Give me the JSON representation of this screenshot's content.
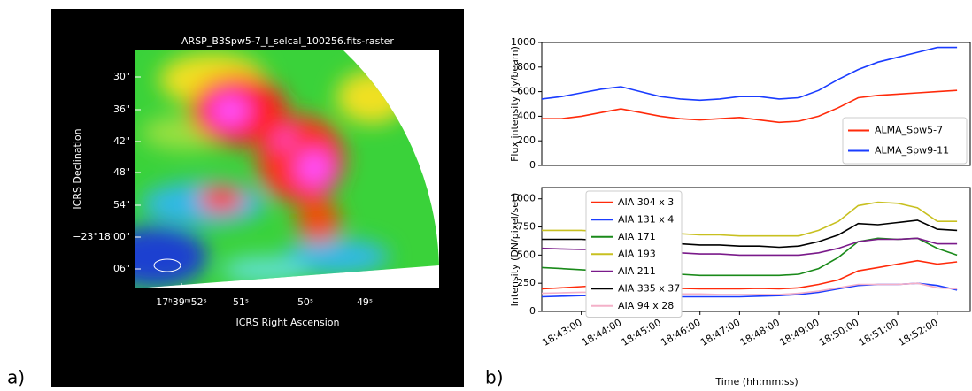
{
  "chart_data": [
    {
      "type": "image",
      "label": "a)",
      "title": "ARSP_B3Spw5-7_I_selcal_100256.fits-raster",
      "xlabel": "ICRS Right Ascension",
      "ylabel": "ICRS Declination",
      "x_tick_labels": [
        "17ʰ39ᵐ52ˢ",
        "51ˢ",
        "50ˢ",
        "49ˢ"
      ],
      "y_tick_labels": [
        "30\"",
        "36\"",
        "42\"",
        "48\"",
        "54\"",
        "−23°18'00\"",
        "06\""
      ]
    },
    {
      "type": "line",
      "label": "b)",
      "ylabel": "Flux intensity (Jy/beam)",
      "x": [
        "18:42:00",
        "18:42:30",
        "18:43:00",
        "18:43:30",
        "18:44:00",
        "18:44:30",
        "18:45:00",
        "18:45:30",
        "18:46:00",
        "18:46:30",
        "18:47:00",
        "18:47:30",
        "18:48:00",
        "18:48:30",
        "18:49:00",
        "18:49:30",
        "18:50:00",
        "18:50:30",
        "18:51:00",
        "18:51:30",
        "18:52:00",
        "18:52:30"
      ],
      "xlim": [
        "18:42:00",
        "18:52:50"
      ],
      "ylim": [
        0,
        1000
      ],
      "yticks": [
        0,
        200,
        400,
        600,
        800,
        1000
      ],
      "legend": "lower right",
      "series": [
        {
          "name": "ALMA_Spw5-7",
          "color": "#ff2a0a",
          "values": [
            380,
            380,
            400,
            430,
            460,
            430,
            400,
            380,
            370,
            380,
            390,
            370,
            350,
            360,
            400,
            470,
            550,
            570,
            580,
            590,
            600,
            610
          ]
        },
        {
          "name": "ALMA_Spw9-11",
          "color": "#1a3cff",
          "values": [
            540,
            560,
            590,
            620,
            640,
            600,
            560,
            540,
            530,
            540,
            560,
            560,
            540,
            550,
            610,
            700,
            780,
            840,
            880,
            920,
            960,
            960
          ]
        }
      ]
    },
    {
      "type": "line",
      "xlabel": "Time (hh:mm:ss)",
      "ylabel": "Intensity (DN/pixel/sec)",
      "x": [
        "18:42:00",
        "18:42:30",
        "18:43:00",
        "18:43:30",
        "18:44:00",
        "18:44:30",
        "18:45:00",
        "18:45:30",
        "18:46:00",
        "18:46:30",
        "18:47:00",
        "18:47:30",
        "18:48:00",
        "18:48:30",
        "18:49:00",
        "18:49:30",
        "18:50:00",
        "18:50:30",
        "18:51:00",
        "18:51:30",
        "18:52:00",
        "18:52:30"
      ],
      "xlim": [
        "18:42:00",
        "18:52:50"
      ],
      "xticks": [
        "18:43:00",
        "18:44:00",
        "18:45:00",
        "18:46:00",
        "18:47:00",
        "18:48:00",
        "18:49:00",
        "18:50:00",
        "18:51:00",
        "18:52:00"
      ],
      "ylim": [
        0,
        1100
      ],
      "yticks": [
        0,
        250,
        500,
        750,
        1000
      ],
      "legend": "upper left",
      "series": [
        {
          "name": "AIA 304 x 3",
          "color": "#ff2a0a",
          "values": [
            200,
            210,
            220,
            230,
            220,
            210,
            210,
            205,
            200,
            200,
            200,
            205,
            200,
            210,
            240,
            280,
            360,
            390,
            420,
            450,
            420,
            440
          ]
        },
        {
          "name": "AIA 131 x 4",
          "color": "#1a3cff",
          "values": [
            130,
            135,
            140,
            140,
            140,
            135,
            130,
            130,
            130,
            130,
            130,
            135,
            140,
            150,
            170,
            200,
            230,
            240,
            240,
            250,
            230,
            190
          ]
        },
        {
          "name": "AIA 171",
          "color": "#1a8a1a",
          "values": [
            390,
            380,
            370,
            360,
            360,
            350,
            340,
            330,
            320,
            320,
            320,
            320,
            320,
            330,
            380,
            480,
            620,
            650,
            640,
            650,
            560,
            500
          ]
        },
        {
          "name": "AIA 193",
          "color": "#c8c020",
          "values": [
            720,
            720,
            720,
            710,
            700,
            700,
            690,
            690,
            680,
            680,
            670,
            670,
            670,
            670,
            720,
            800,
            940,
            970,
            960,
            920,
            800,
            800
          ]
        },
        {
          "name": "AIA 211",
          "color": "#7a1a8a",
          "values": [
            560,
            555,
            550,
            550,
            545,
            540,
            530,
            520,
            510,
            510,
            500,
            500,
            500,
            500,
            520,
            560,
            620,
            640,
            640,
            650,
            600,
            600
          ]
        },
        {
          "name": "AIA 335 x 37",
          "color": "#000000",
          "values": [
            640,
            640,
            640,
            630,
            620,
            610,
            600,
            600,
            590,
            590,
            580,
            580,
            570,
            580,
            620,
            680,
            780,
            770,
            790,
            810,
            730,
            720
          ]
        },
        {
          "name": "AIA 94 x 28",
          "color": "#f4b0c8",
          "values": [
            160,
            165,
            170,
            170,
            165,
            165,
            160,
            155,
            155,
            150,
            150,
            150,
            150,
            160,
            180,
            210,
            240,
            240,
            240,
            250,
            210,
            200
          ]
        }
      ]
    }
  ]
}
